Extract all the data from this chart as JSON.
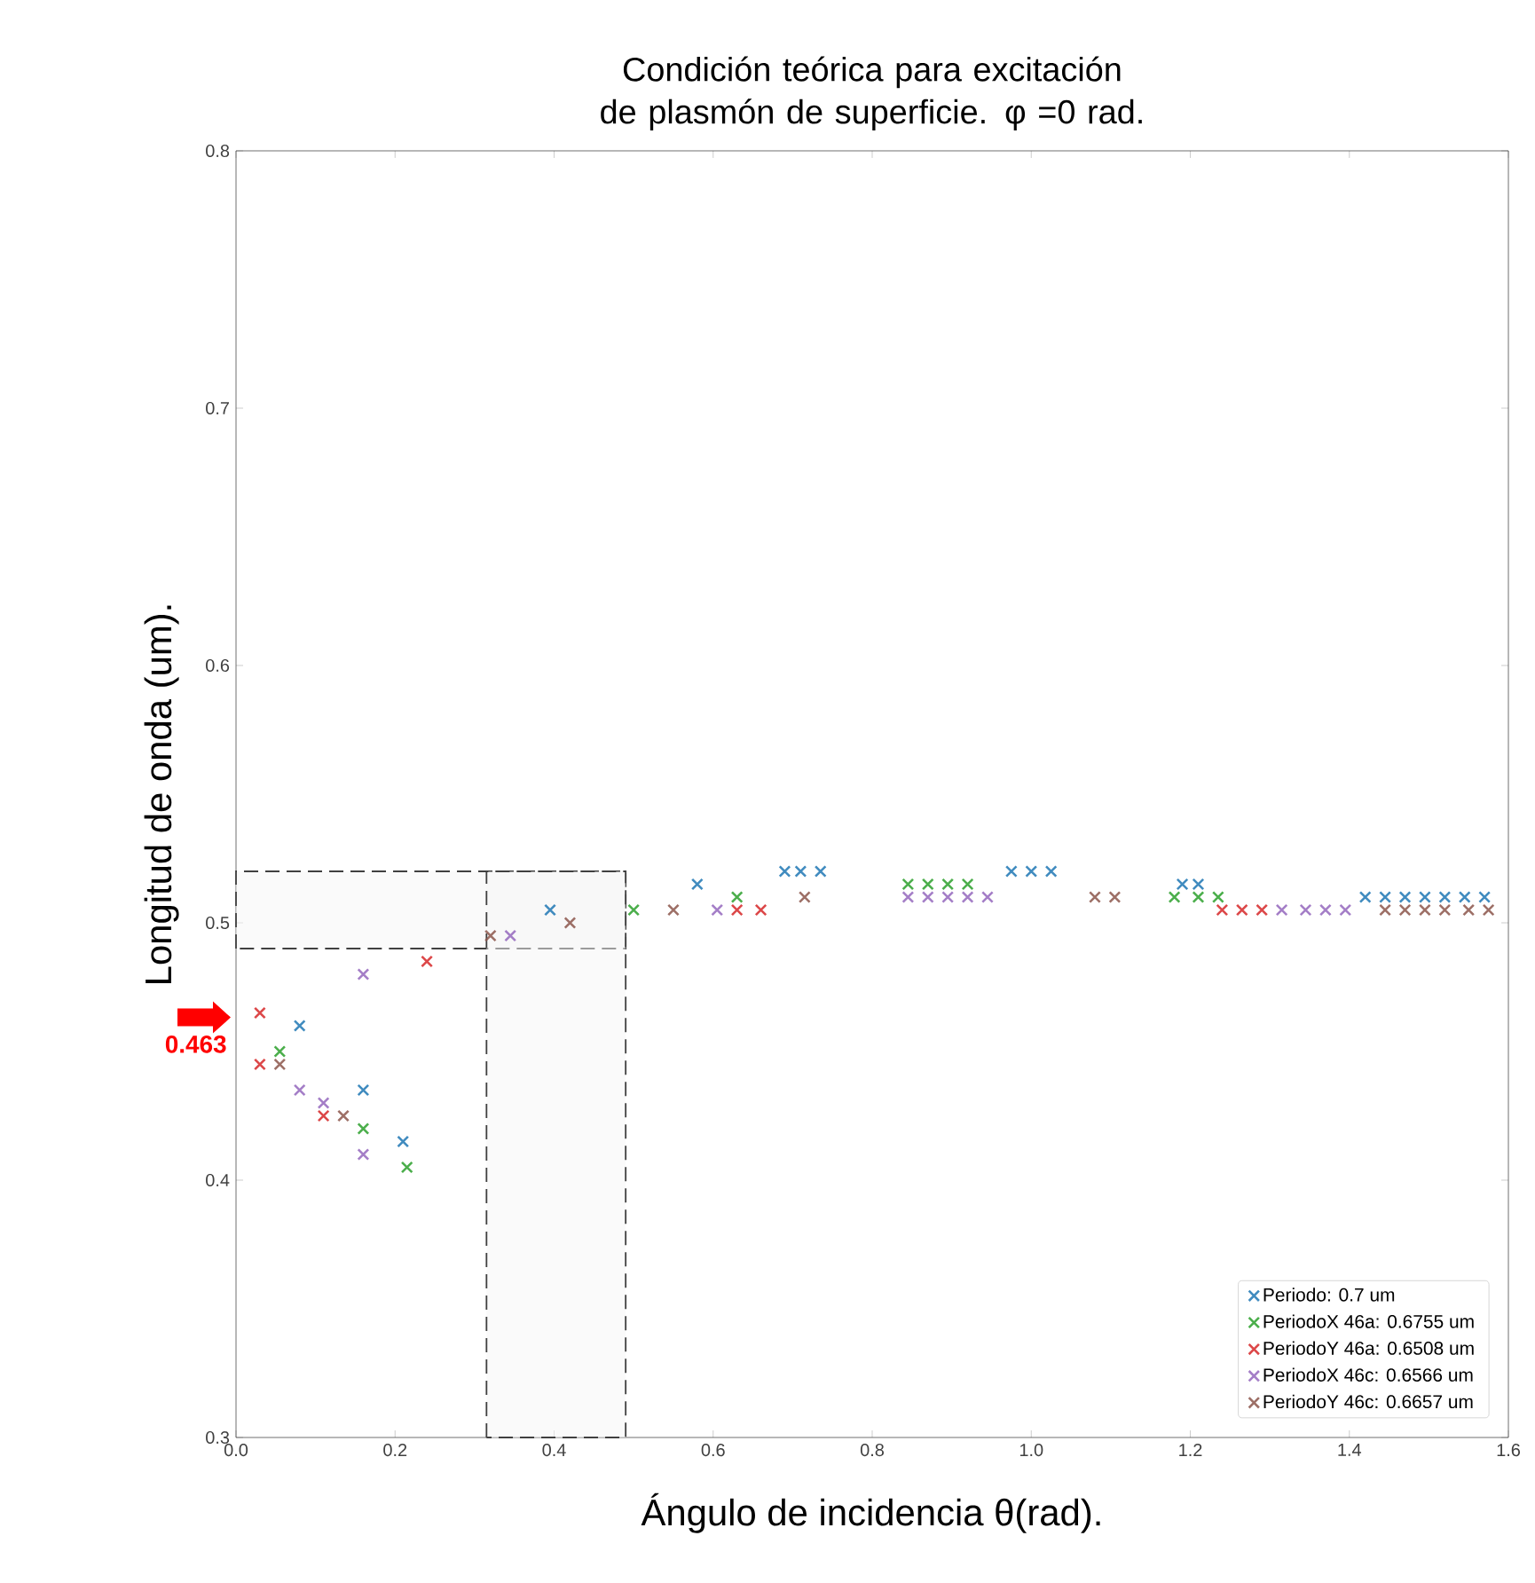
{
  "chart_data": {
    "type": "scatter",
    "title": "Condición teórica para excitación de plasmón de superficie. φ =0 rad.",
    "xlabel": "Ángulo de incidencia θ(rad).",
    "ylabel": "Longitud de onda (um).",
    "xlim": [
      0,
      1.6
    ],
    "ylim": [
      0.3,
      0.8
    ],
    "xticks": [
      {
        "value": 0,
        "label": "0.0"
      },
      0.2,
      0.4,
      0.6,
      0.8,
      {
        "value": 1,
        "label": "1.0"
      },
      1.2,
      1.4,
      1.6
    ],
    "yticks": [
      0.3,
      0.4,
      0.5,
      0.6,
      0.7,
      0.8
    ],
    "marker": "cross",
    "legend": "bottom right",
    "grid": false,
    "series": [
      {
        "name": "Periodo: 0.7 um",
        "color": "#1f77b4",
        "x": [
          0.08,
          0.16,
          0.21,
          0.395,
          0.58,
          0.69,
          0.71,
          0.735,
          0.975,
          1.0,
          1.025,
          1.19,
          1.21,
          1.42,
          1.445,
          1.47,
          1.495,
          1.52,
          1.545,
          1.57
        ],
        "values": [
          0.46,
          0.435,
          0.415,
          0.505,
          0.515,
          0.52,
          0.52,
          0.52,
          0.52,
          0.52,
          0.52,
          0.515,
          0.515,
          0.51,
          0.51,
          0.51,
          0.51,
          0.51,
          0.51,
          0.51
        ]
      },
      {
        "name": "PeriodoX 46a: 0.6755 um",
        "color": "#2ca02c",
        "x": [
          0.055,
          0.16,
          0.215,
          0.5,
          0.63,
          0.845,
          0.87,
          0.895,
          0.92,
          1.18,
          1.21,
          1.235
        ],
        "values": [
          0.45,
          0.42,
          0.405,
          0.505,
          0.51,
          0.515,
          0.515,
          0.515,
          0.515,
          0.51,
          0.51,
          0.51
        ]
      },
      {
        "name": "PeriodoY 46a: 0.6508 um",
        "color": "#d62728",
        "x": [
          0.03,
          0.03,
          0.11,
          0.24,
          0.63,
          0.66,
          1.24,
          1.265,
          1.29
        ],
        "values": [
          0.465,
          0.445,
          0.425,
          0.485,
          0.505,
          0.505,
          0.505,
          0.505,
          0.505
        ]
      },
      {
        "name": "PeriodoX 46c: 0.6566 um",
        "color": "#9467bd",
        "x": [
          0.08,
          0.11,
          0.16,
          0.16,
          0.345,
          0.605,
          0.845,
          0.87,
          0.895,
          0.92,
          0.945,
          1.315,
          1.345,
          1.37,
          1.395
        ],
        "values": [
          0.435,
          0.43,
          0.41,
          0.48,
          0.495,
          0.505,
          0.51,
          0.51,
          0.51,
          0.51,
          0.51,
          0.505,
          0.505,
          0.505,
          0.505
        ]
      },
      {
        "name": "PeriodoY 46c: 0.6657 um",
        "color": "#8c564b",
        "x": [
          0.055,
          0.135,
          0.32,
          0.42,
          0.55,
          0.715,
          1.08,
          1.105,
          1.445,
          1.47,
          1.495,
          1.52,
          1.55,
          1.575
        ],
        "values": [
          0.445,
          0.425,
          0.495,
          0.5,
          0.505,
          0.51,
          0.51,
          0.51,
          0.505,
          0.505,
          0.505,
          0.505,
          0.505,
          0.505
        ]
      }
    ],
    "bands": [
      {
        "axis": "y",
        "from": 0.49,
        "to": 0.52
      },
      {
        "axis": "x",
        "from": 0.315,
        "to": 0.49
      }
    ],
    "annotations": [
      "0.463"
    ]
  }
}
